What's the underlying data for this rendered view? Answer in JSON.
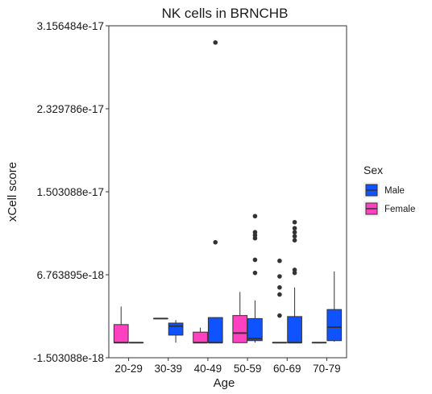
{
  "chart_data": {
    "type": "boxplot",
    "title": "NK cells in BRNCHB",
    "xlabel": "Age",
    "ylabel": "xCell score",
    "categories": [
      "20-29",
      "30-39",
      "40-49",
      "50-59",
      "60-69",
      "70-79"
    ],
    "ylim": [
      -1.503088e-18,
      3.156484e-17
    ],
    "ytick_values": [
      -1.503088e-18,
      6.763895e-18,
      1.503088e-17,
      2.329786e-17,
      3.156484e-17
    ],
    "ytick_labels": [
      "-1.503088e-18",
      "6.763895e-18",
      "1.503088e-17",
      "2.329786e-17",
      "3.156484e-17"
    ],
    "grid": false,
    "legend": {
      "title": "Sex",
      "position": "right",
      "entries": [
        {
          "name": "Male",
          "color": "#0F52FF"
        },
        {
          "name": "Female",
          "color": "#FF40C0"
        }
      ]
    },
    "series": [
      {
        "name": "Female",
        "color": "#FF40C0",
        "boxes": [
          {
            "category": "20-29",
            "min": 0,
            "q1": 0,
            "median": 0,
            "q3": 1.8e-18,
            "max": 3.6e-18,
            "outliers": []
          },
          {
            "category": "30-39",
            "min": 2.4e-18,
            "q1": 2.4e-18,
            "median": 2.4e-18,
            "q3": 2.4e-18,
            "max": 2.4e-18,
            "outliers": []
          },
          {
            "category": "40-49",
            "min": 0,
            "q1": 0,
            "median": 0,
            "q3": 1.05e-18,
            "max": 1.5e-18,
            "outliers": []
          },
          {
            "category": "50-59",
            "min": 0,
            "q1": 0,
            "median": 9.5e-19,
            "q3": 2.7e-18,
            "max": 5.05e-18,
            "outliers": []
          },
          {
            "category": "60-69",
            "min": 0,
            "q1": 0,
            "median": 0,
            "q3": 0,
            "max": 0,
            "outliers": [
              2.7e-18,
              4.8e-18,
              5.5e-18,
              6.6e-18,
              8.15e-18
            ]
          },
          {
            "category": "70-79",
            "min": 0,
            "q1": 0,
            "median": 0,
            "q3": 0,
            "max": 0,
            "outliers": []
          }
        ]
      },
      {
        "name": "Male",
        "color": "#0F52FF",
        "boxes": [
          {
            "category": "20-29",
            "min": 0,
            "q1": 0,
            "median": 0,
            "q3": 0,
            "max": 0,
            "outliers": []
          },
          {
            "category": "30-39",
            "min": 0,
            "q1": 7.5e-19,
            "median": 1.65e-18,
            "q3": 1.95e-18,
            "max": 2.25e-18,
            "outliers": []
          },
          {
            "category": "40-49",
            "min": 0,
            "q1": 0,
            "median": 0,
            "q3": 2.5e-18,
            "max": 2.5e-18,
            "outliers": [
              1e-17,
              2.99e-17
            ]
          },
          {
            "category": "50-59",
            "min": 0,
            "q1": 2e-19,
            "median": 4e-19,
            "q3": 2.4e-18,
            "max": 4.2e-18,
            "outliers": [
              6.95e-18,
              8.25e-18,
              1.04e-17,
              1.07e-17,
              1.1e-17,
              1.26e-17
            ]
          },
          {
            "category": "60-69",
            "min": 0,
            "q1": 0,
            "median": 0,
            "q3": 2.6e-18,
            "max": 5.5e-18,
            "outliers": [
              6.95e-18,
              7.25e-18,
              1.02e-17,
              1.06e-17,
              1.1e-17,
              1.14e-17,
              1.2e-17
            ]
          },
          {
            "category": "70-79",
            "min": 1e-19,
            "q1": 2e-19,
            "median": 1.55e-18,
            "q3": 3.3e-18,
            "max": 7.1e-18,
            "outliers": []
          }
        ]
      }
    ]
  }
}
